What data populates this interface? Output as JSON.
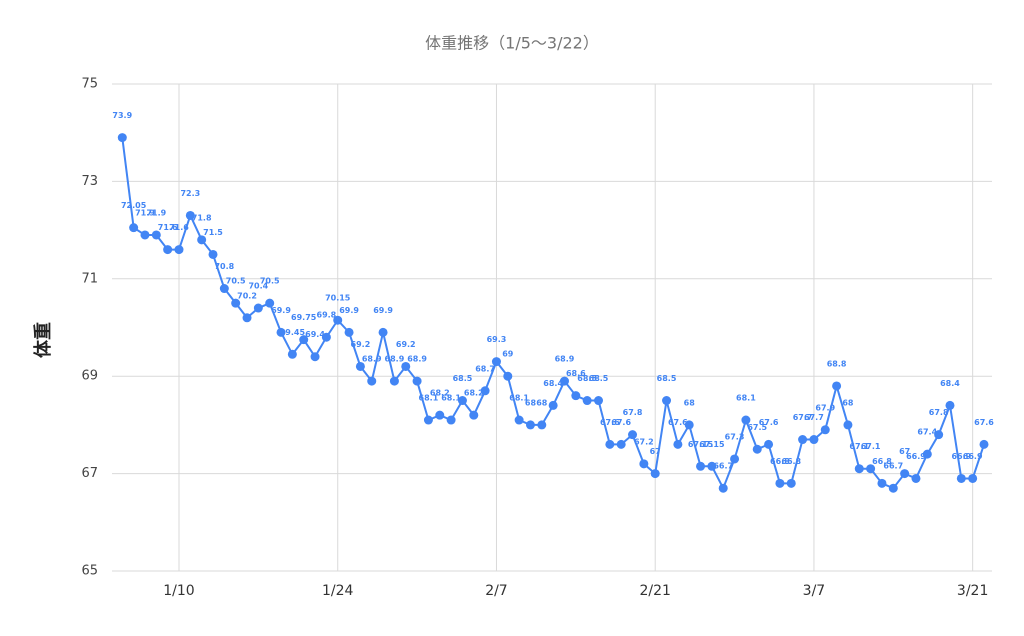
{
  "chart_data": {
    "type": "line",
    "title": "体重推移（1/5〜3/22）",
    "y_label": "体重",
    "categories": [
      null,
      null,
      null,
      null,
      null,
      "1/10",
      null,
      null,
      null,
      null,
      null,
      null,
      null,
      null,
      null,
      null,
      null,
      null,
      null,
      "1/24",
      null,
      null,
      null,
      null,
      null,
      null,
      null,
      null,
      null,
      null,
      null,
      null,
      null,
      "2/7",
      null,
      null,
      null,
      null,
      null,
      null,
      null,
      null,
      null,
      null,
      null,
      null,
      null,
      "2/21",
      null,
      null,
      null,
      null,
      null,
      null,
      null,
      null,
      null,
      null,
      null,
      null,
      null,
      "3/7",
      null,
      null,
      null,
      null,
      null,
      null,
      null,
      null,
      null,
      null,
      null,
      null,
      null,
      "3/21",
      null
    ],
    "series": [
      {
        "name": "体重",
        "color": "#4285f4",
        "values": [
          73.9,
          72.05,
          71.9,
          71.9,
          71.6,
          71.6,
          72.3,
          71.8,
          71.5,
          70.8,
          70.5,
          70.2,
          70.4,
          70.5,
          69.9,
          69.45,
          69.75,
          69.4,
          69.8,
          70.15,
          69.9,
          69.2,
          68.9,
          69.9,
          68.9,
          69.2,
          68.9,
          68.1,
          68.2,
          68.1,
          68.5,
          68.2,
          68.7,
          69.3,
          69,
          68.1,
          68,
          68,
          68.4,
          68.9,
          68.6,
          68.5,
          68.5,
          67.6,
          67.6,
          67.8,
          67.2,
          67,
          68.5,
          67.6,
          68,
          67.15,
          67.15,
          66.7,
          67.3,
          68.1,
          67.5,
          67.6,
          66.8,
          66.8,
          67.7,
          67.7,
          67.9,
          68.8,
          68,
          67.1,
          67.1,
          66.8,
          66.7,
          67,
          66.9,
          67.4,
          67.8,
          68.4,
          66.9,
          66.9,
          67.6
        ]
      }
    ],
    "ylim": [
      65,
      75
    ],
    "yticks": [
      65,
      67,
      69,
      71,
      73,
      75
    ],
    "grid": true
  }
}
